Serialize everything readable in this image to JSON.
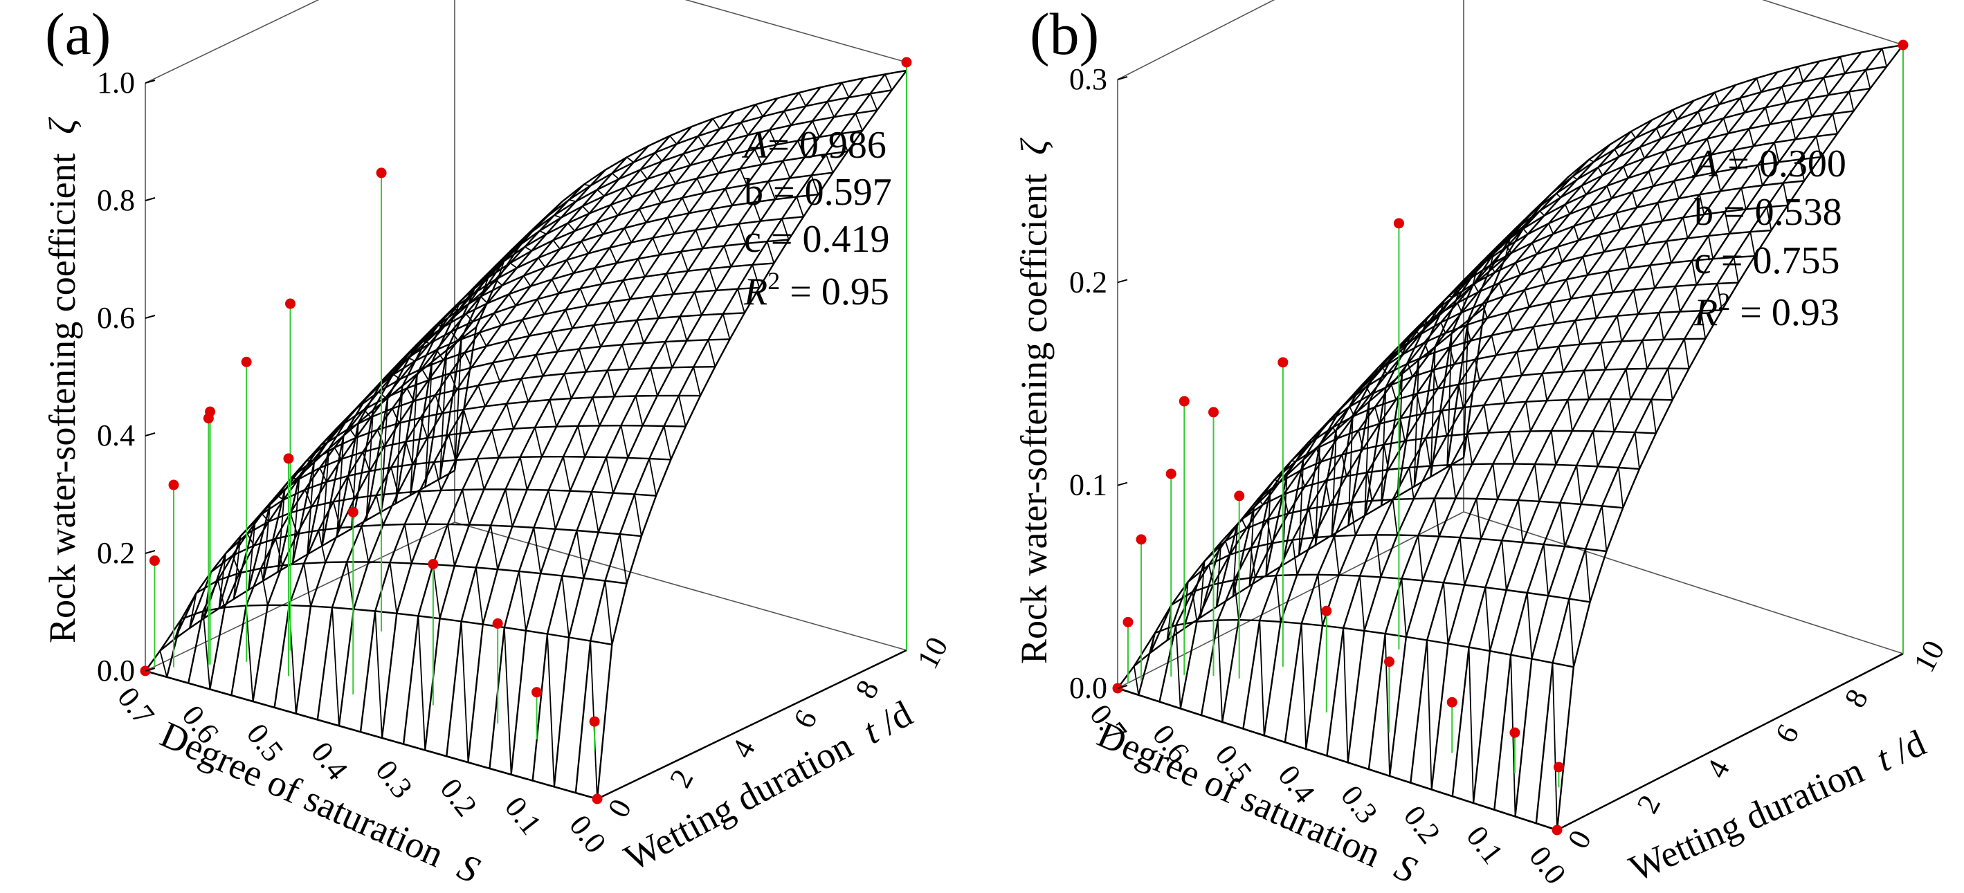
{
  "chart_data": [
    {
      "type": "3d-surface",
      "panel_label": "(a)",
      "z_axis": {
        "label": "Rock water-softening coefficient",
        "symbol": "ζ",
        "range": [
          0,
          1.0
        ],
        "ticks": [
          "0.0",
          "0.2",
          "0.4",
          "0.6",
          "0.8",
          "1.0"
        ]
      },
      "x_axis": {
        "label": "Degree of saturation",
        "symbol": "S",
        "range": [
          0,
          0.7
        ],
        "ticks": [
          "0.0",
          "0.1",
          "0.2",
          "0.3",
          "0.4",
          "0.5",
          "0.6",
          "0.7"
        ]
      },
      "y_axis": {
        "label_prefix": "Wetting duration",
        "symbol": "t",
        "unit": "/d",
        "range": [
          0,
          10
        ],
        "ticks": [
          "0",
          "2",
          "4",
          "6",
          "8",
          "10"
        ]
      },
      "params": {
        "A": "0.986",
        "b": "0.597",
        "c": "0.419",
        "R2": "0.95"
      },
      "param_lines": [
        "A= 0.986",
        "b = 0.597",
        "c = 0.419",
        "R2 = 0.95"
      ],
      "points": [
        {
          "s": 0.7,
          "t": 0,
          "z": 0.0
        },
        {
          "s": 0.7,
          "t": 0.3,
          "z": 0.18
        },
        {
          "s": 0.68,
          "t": 0.5,
          "z": 0.31
        },
        {
          "s": 0.65,
          "t": 1.0,
          "z": 0.42
        },
        {
          "s": 0.65,
          "t": 1.05,
          "z": 0.43
        },
        {
          "s": 0.62,
          "t": 1.6,
          "z": 0.51
        },
        {
          "s": 0.6,
          "t": 2.6,
          "z": 0.59
        },
        {
          "s": 0.55,
          "t": 4.5,
          "z": 0.78
        },
        {
          "s": 0.55,
          "t": 1.5,
          "z": 0.37
        },
        {
          "s": 0.45,
          "t": 1.5,
          "z": 0.31
        },
        {
          "s": 0.35,
          "t": 2.0,
          "z": 0.24
        },
        {
          "s": 0.25,
          "t": 2.0,
          "z": 0.17
        },
        {
          "s": 0.18,
          "t": 1.8,
          "z": 0.08
        },
        {
          "s": 0.1,
          "t": 2.0,
          "z": 0.05
        },
        {
          "s": 0.0,
          "t": 0,
          "z": 0.0
        },
        {
          "s": 0.0,
          "t": 10,
          "z": 1.0
        }
      ]
    },
    {
      "type": "3d-surface",
      "panel_label": "(b)",
      "z_axis": {
        "label": "Rock water-softening coefficient",
        "symbol": "ζ",
        "range": [
          0,
          0.3
        ],
        "ticks": [
          "0.0",
          "0.1",
          "0.2",
          "0.3"
        ]
      },
      "x_axis": {
        "label": "Degree of saturation",
        "symbol": "S",
        "range": [
          0,
          0.7
        ],
        "ticks": [
          "0.0",
          "0.1",
          "0.2",
          "0.3",
          "0.4",
          "0.5",
          "0.6",
          "0.7"
        ]
      },
      "y_axis": {
        "label_prefix": "Wetting duration",
        "symbol": "t",
        "unit": "/d",
        "range": [
          0,
          10
        ],
        "ticks": [
          "0",
          "2",
          "4",
          "6",
          "8",
          "10"
        ]
      },
      "params": {
        "A": "0.300",
        "b": "0.538",
        "c": "0.755",
        "R2": "0.93"
      },
      "param_lines": [
        "A = 0.300",
        "b = 0.538",
        "c = 0.755",
        "R2 = 0.93"
      ],
      "points": [
        {
          "s": 0.7,
          "t": 0,
          "z": 0.0
        },
        {
          "s": 0.7,
          "t": 0.3,
          "z": 0.03
        },
        {
          "s": 0.69,
          "t": 0.5,
          "z": 0.07
        },
        {
          "s": 0.67,
          "t": 1.0,
          "z": 0.1
        },
        {
          "s": 0.66,
          "t": 1.2,
          "z": 0.135
        },
        {
          "s": 0.63,
          "t": 1.5,
          "z": 0.13
        },
        {
          "s": 0.6,
          "t": 1.7,
          "z": 0.09
        },
        {
          "s": 0.58,
          "t": 2.6,
          "z": 0.15
        },
        {
          "s": 0.5,
          "t": 4.5,
          "z": 0.21
        },
        {
          "s": 0.45,
          "t": 1.5,
          "z": 0.05
        },
        {
          "s": 0.35,
          "t": 1.5,
          "z": 0.035
        },
        {
          "s": 0.25,
          "t": 1.5,
          "z": 0.025
        },
        {
          "s": 0.15,
          "t": 1.5,
          "z": 0.02
        },
        {
          "s": 0.08,
          "t": 1.5,
          "z": 0.01
        },
        {
          "s": 0.0,
          "t": 0,
          "z": 0.0
        },
        {
          "s": 0.0,
          "t": 10,
          "z": 0.3
        }
      ]
    }
  ]
}
